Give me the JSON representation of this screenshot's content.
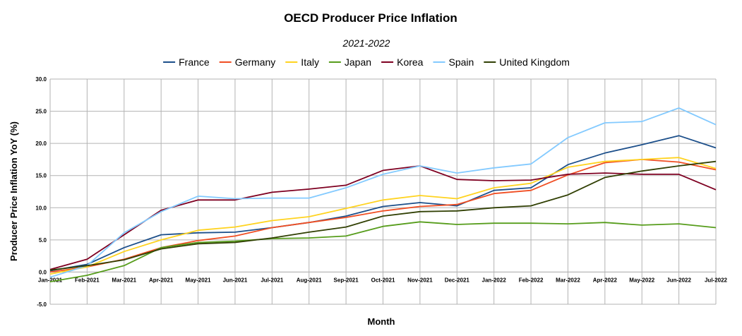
{
  "chart_data": {
    "type": "line",
    "title": "OECD Producer Price Inflation",
    "subtitle": "2021-2022",
    "xlabel": "Month",
    "ylabel": "Producer Price Inflation YoY (%)",
    "ylim": [
      -5,
      30
    ],
    "yticks": [
      "30.0",
      "25.0",
      "20.0",
      "15.0",
      "10.0",
      "5.0",
      "0.0",
      "-5.0"
    ],
    "ytick_values": [
      30,
      25,
      20,
      15,
      10,
      5,
      0,
      -5
    ],
    "grid": true,
    "legend_position": "top-center",
    "categories": [
      "Jan-2021",
      "Feb-2021",
      "Mar-2021",
      "Apr-2021",
      "May-2021",
      "Jun-2021",
      "Jul-2021",
      "Aug-2021",
      "Sep-2021",
      "Oct-2021",
      "Nov-2021",
      "Dec-2021",
      "Jan-2022",
      "Feb-2022",
      "Mar-2022",
      "Apr-2022",
      "May-2022",
      "Jun-2022",
      "Jul-2022"
    ],
    "series": [
      {
        "name": "France",
        "color": "#1c4f8a",
        "values": [
          0.2,
          1.2,
          3.8,
          5.8,
          6.1,
          6.2,
          6.9,
          7.7,
          8.7,
          10.2,
          10.8,
          10.3,
          12.7,
          13.1,
          16.7,
          18.5,
          19.8,
          21.2,
          19.3
        ]
      },
      {
        "name": "Germany",
        "color": "#f04e23",
        "values": [
          0.0,
          0.8,
          2.0,
          3.8,
          4.9,
          5.6,
          6.9,
          7.7,
          8.5,
          9.5,
          10.2,
          10.5,
          12.2,
          12.7,
          15.1,
          17.0,
          17.5,
          17.1,
          15.9
        ]
      },
      {
        "name": "Italy",
        "color": "#ffd320",
        "values": [
          -0.3,
          0.8,
          3.2,
          5.0,
          6.5,
          7.0,
          8.0,
          8.6,
          9.9,
          11.2,
          11.9,
          11.4,
          13.1,
          13.8,
          16.3,
          17.2,
          17.5,
          17.8,
          16.1
        ]
      },
      {
        "name": "Japan",
        "color": "#579d1c",
        "values": [
          -1.5,
          -0.5,
          1.0,
          3.8,
          4.6,
          4.8,
          5.2,
          5.3,
          5.6,
          7.1,
          7.8,
          7.4,
          7.6,
          7.6,
          7.5,
          7.7,
          7.3,
          7.5,
          6.9
        ]
      },
      {
        "name": "Korea",
        "color": "#7e0021",
        "values": [
          0.4,
          2.0,
          5.8,
          9.6,
          11.2,
          11.2,
          12.4,
          12.9,
          13.5,
          15.8,
          16.5,
          14.4,
          14.2,
          14.3,
          15.2,
          15.4,
          15.2,
          15.2,
          12.8
        ]
      },
      {
        "name": "Spain",
        "color": "#83caff",
        "values": [
          -0.8,
          1.0,
          6.1,
          9.4,
          11.8,
          11.4,
          11.5,
          11.5,
          13.1,
          15.2,
          16.5,
          15.4,
          16.2,
          16.8,
          20.9,
          23.2,
          23.4,
          25.5,
          22.9
        ]
      },
      {
        "name": "United Kingdom",
        "color": "#314004",
        "values": [
          0.3,
          1.0,
          1.9,
          3.6,
          4.4,
          4.6,
          5.3,
          6.2,
          7.0,
          8.7,
          9.4,
          9.5,
          10.0,
          10.3,
          12.0,
          14.7,
          15.7,
          16.5,
          17.2
        ]
      }
    ]
  }
}
